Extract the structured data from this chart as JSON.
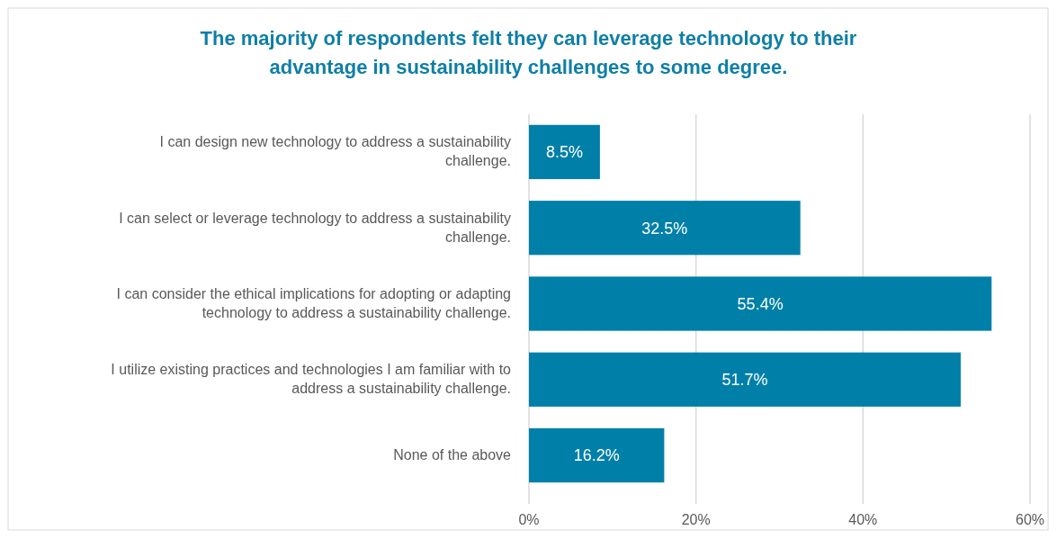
{
  "chart_data": {
    "type": "bar",
    "orientation": "horizontal",
    "title": "The majority of respondents felt they can leverage technology to their advantage in sustainability challenges to some degree.",
    "categories": [
      "I can design new technology to address a sustainability challenge.",
      "I can select or leverage technology to address a sustainability challenge.",
      "I can consider the ethical implications for adopting or adapting technology to address a sustainability challenge.",
      "I utilize existing practices and technologies I am familiar with to address a sustainability challenge.",
      "None of the above"
    ],
    "values": [
      8.5,
      32.5,
      55.4,
      51.7,
      16.2
    ],
    "value_labels": [
      "8.5%",
      "32.5%",
      "55.4%",
      "51.7%",
      "16.2%"
    ],
    "color": "#0080a8",
    "xlim": [
      0,
      60
    ],
    "xticks": [
      {
        "value": 0,
        "label": "0%"
      },
      {
        "value": 20,
        "label": "20%"
      },
      {
        "value": 40,
        "label": "40%"
      },
      {
        "value": 60,
        "label": "60%"
      }
    ],
    "grid": "x"
  }
}
